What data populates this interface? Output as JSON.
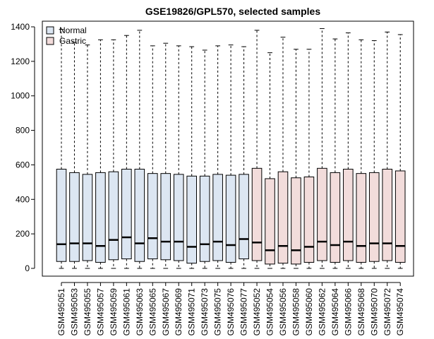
{
  "chart_data": {
    "type": "boxplot",
    "title": "GSE19826/GPL570, selected samples",
    "xlabel": "",
    "ylabel": "",
    "ylim": [
      -50,
      1450
    ],
    "yticks": [
      0,
      200,
      400,
      600,
      800,
      1000,
      1200,
      1400
    ],
    "legend": {
      "placement": "top-left",
      "entries": [
        {
          "name": "Normal",
          "color": "#dce6f2"
        },
        {
          "name": "Gastric",
          "color": "#f2dcdb"
        }
      ]
    },
    "samples": [
      {
        "name": "GSM495051",
        "group": "Normal",
        "min": 0,
        "q1": 40,
        "median": 140,
        "q3": 575,
        "max": 1385
      },
      {
        "name": "GSM495053",
        "group": "Normal",
        "min": 0,
        "q1": 40,
        "median": 145,
        "q3": 555,
        "max": 1310
      },
      {
        "name": "GSM495055",
        "group": "Normal",
        "min": 0,
        "q1": 45,
        "median": 145,
        "q3": 545,
        "max": 1295
      },
      {
        "name": "GSM495057",
        "group": "Normal",
        "min": 0,
        "q1": 35,
        "median": 130,
        "q3": 555,
        "max": 1325
      },
      {
        "name": "GSM495059",
        "group": "Normal",
        "min": 0,
        "q1": 50,
        "median": 165,
        "q3": 560,
        "max": 1325
      },
      {
        "name": "GSM495061",
        "group": "Normal",
        "min": 0,
        "q1": 55,
        "median": 180,
        "q3": 575,
        "max": 1350
      },
      {
        "name": "GSM495063",
        "group": "Normal",
        "min": 0,
        "q1": 40,
        "median": 145,
        "q3": 575,
        "max": 1380
      },
      {
        "name": "GSM495065",
        "group": "Normal",
        "min": 0,
        "q1": 55,
        "median": 175,
        "q3": 550,
        "max": 1290
      },
      {
        "name": "GSM495067",
        "group": "Normal",
        "min": 0,
        "q1": 50,
        "median": 155,
        "q3": 550,
        "max": 1305
      },
      {
        "name": "GSM495069",
        "group": "Normal",
        "min": 0,
        "q1": 45,
        "median": 155,
        "q3": 545,
        "max": 1290
      },
      {
        "name": "GSM495071",
        "group": "Normal",
        "min": 0,
        "q1": 30,
        "median": 125,
        "q3": 535,
        "max": 1285
      },
      {
        "name": "GSM495073",
        "group": "Normal",
        "min": 0,
        "q1": 40,
        "median": 140,
        "q3": 535,
        "max": 1265
      },
      {
        "name": "GSM495075",
        "group": "Normal",
        "min": 0,
        "q1": 45,
        "median": 155,
        "q3": 545,
        "max": 1290
      },
      {
        "name": "GSM495076",
        "group": "Normal",
        "min": 0,
        "q1": 35,
        "median": 135,
        "q3": 540,
        "max": 1295
      },
      {
        "name": "GSM495077",
        "group": "Normal",
        "min": 0,
        "q1": 55,
        "median": 170,
        "q3": 545,
        "max": 1285
      },
      {
        "name": "GSM495052",
        "group": "Gastric",
        "min": 0,
        "q1": 45,
        "median": 150,
        "q3": 580,
        "max": 1380
      },
      {
        "name": "GSM495054",
        "group": "Gastric",
        "min": 0,
        "q1": 25,
        "median": 105,
        "q3": 520,
        "max": 1250
      },
      {
        "name": "GSM495056",
        "group": "Gastric",
        "min": 0,
        "q1": 30,
        "median": 130,
        "q3": 560,
        "max": 1340
      },
      {
        "name": "GSM495058",
        "group": "Gastric",
        "min": 0,
        "q1": 25,
        "median": 105,
        "q3": 525,
        "max": 1270
      },
      {
        "name": "GSM495060",
        "group": "Gastric",
        "min": 0,
        "q1": 35,
        "median": 125,
        "q3": 530,
        "max": 1270
      },
      {
        "name": "GSM495062",
        "group": "Gastric",
        "min": 0,
        "q1": 45,
        "median": 155,
        "q3": 580,
        "max": 1390
      },
      {
        "name": "GSM495064",
        "group": "Gastric",
        "min": 0,
        "q1": 35,
        "median": 135,
        "q3": 555,
        "max": 1330
      },
      {
        "name": "GSM495066",
        "group": "Gastric",
        "min": 0,
        "q1": 45,
        "median": 155,
        "q3": 575,
        "max": 1365
      },
      {
        "name": "GSM495068",
        "group": "Gastric",
        "min": 0,
        "q1": 35,
        "median": 130,
        "q3": 550,
        "max": 1325
      },
      {
        "name": "GSM495070",
        "group": "Gastric",
        "min": 0,
        "q1": 40,
        "median": 145,
        "q3": 555,
        "max": 1320
      },
      {
        "name": "GSM495072",
        "group": "Gastric",
        "min": 0,
        "q1": 45,
        "median": 145,
        "q3": 575,
        "max": 1370
      },
      {
        "name": "GSM495074",
        "group": "Gastric",
        "min": 0,
        "q1": 35,
        "median": 130,
        "q3": 565,
        "max": 1355
      }
    ]
  }
}
